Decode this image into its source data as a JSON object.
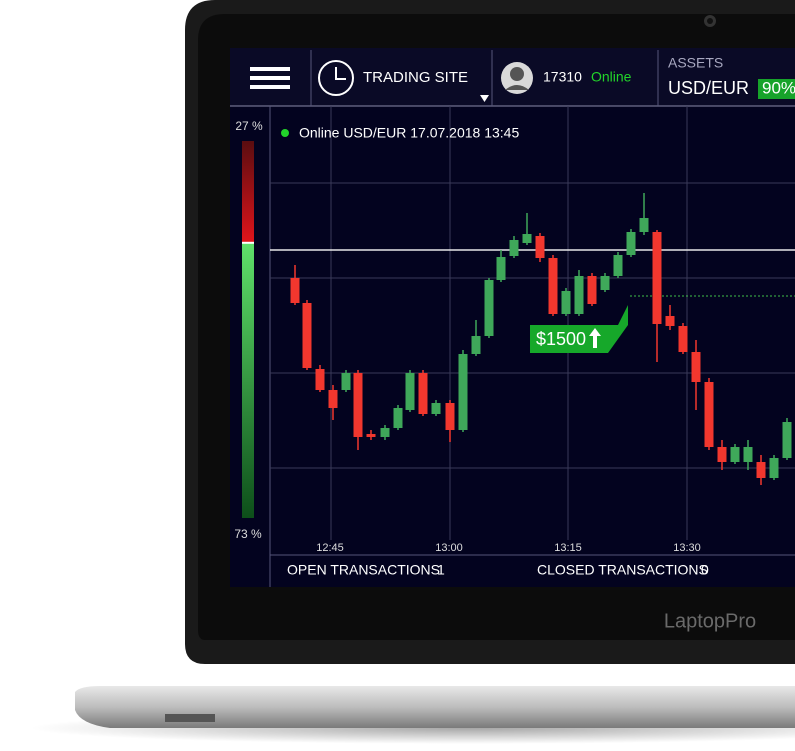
{
  "header": {
    "site_title": "TRADING SITE",
    "user_id": "17310",
    "user_status": "Online",
    "assets_label": "ASSETS",
    "asset_pair": "USD/EUR",
    "asset_payout": "90%"
  },
  "sentiment": {
    "values": [
      27,
      73
    ],
    "value_labels": [
      "27 %",
      "73 %"
    ]
  },
  "chart": {
    "status": "Online USD/EUR 17.07.2018 13:45",
    "x_labels": [
      "12:45",
      "13:00",
      "13:15",
      "13:30"
    ],
    "marker_label": "$1500"
  },
  "footer": {
    "open_label": "OPEN TRANSACTIONS",
    "open_count": 1,
    "closed_label": "CLOSED TRANSACTIONS",
    "closed_count": 0
  },
  "brand": "LaptopPro"
}
